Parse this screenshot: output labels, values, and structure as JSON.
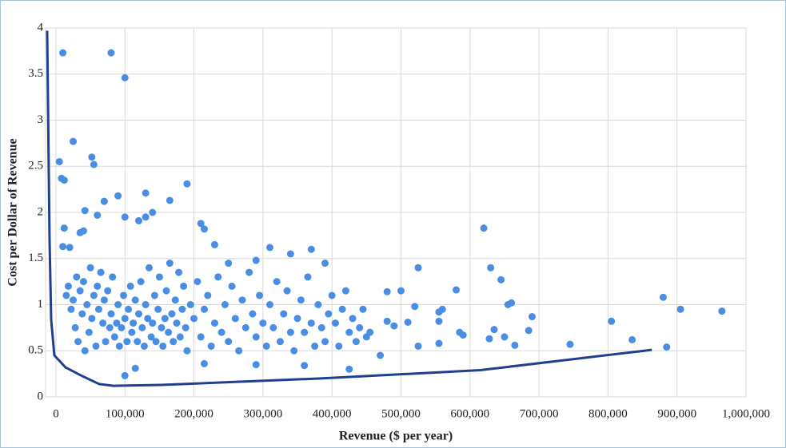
{
  "chart_data": {
    "type": "scatter",
    "xlabel": "Revenue ($ per year)",
    "ylabel": "Cost per Dollar of Revenue",
    "xlim": [
      -15000,
      1000000
    ],
    "xticks": [
      0,
      {
        "value": 100000,
        "label": "100,000"
      },
      {
        "value": 200000,
        "label": "200,000"
      },
      {
        "value": 300000,
        "label": "300,000"
      },
      {
        "value": 400000,
        "label": "400,000"
      },
      {
        "value": 500000,
        "label": "500,000"
      },
      {
        "value": 600000,
        "label": "600,000"
      },
      {
        "value": 700000,
        "label": "700,000"
      },
      {
        "value": 800000,
        "label": "800,000"
      },
      {
        "value": 900000,
        "label": "900,000"
      },
      {
        "value": 1000000,
        "label": "1,000,000"
      }
    ],
    "ylim": [
      0,
      4
    ],
    "yticks": [
      0,
      0.5,
      1,
      1.5,
      2,
      2.5,
      3,
      3.5,
      4
    ],
    "grid": true,
    "series": [
      {
        "mode": "markers",
        "color": "#4a8ee3",
        "x": [
          10000,
          80000,
          100000,
          25000,
          5000,
          8000,
          12000,
          52000,
          55000,
          130000,
          90000,
          70000,
          165000,
          190000,
          12000,
          42000,
          60000,
          100000,
          130000,
          140000,
          120000,
          210000,
          215000,
          230000,
          620000,
          630000,
          645000,
          525000,
          580000,
          500000,
          480000,
          520000,
          560000,
          555000,
          655000,
          660000,
          690000,
          880000,
          905000,
          965000,
          805000,
          835000,
          885000,
          745000,
          685000,
          650000,
          665000,
          635000,
          628000,
          590000,
          585000,
          555000,
          555000,
          525000,
          510000,
          490000,
          480000,
          470000,
          425000,
          360000,
          290000,
          100000,
          115000,
          215000,
          370000,
          310000,
          340000,
          390000,
          290000,
          250000,
          40000,
          20000,
          35000,
          10000,
          15000,
          18000,
          22000,
          25000,
          28000,
          30000,
          32000,
          35000,
          38000,
          40000,
          42000,
          45000,
          48000,
          50000,
          52000,
          55000,
          58000,
          60000,
          62000,
          65000,
          68000,
          70000,
          72000,
          75000,
          78000,
          80000,
          82000,
          85000,
          88000,
          90000,
          92000,
          95000,
          98000,
          100000,
          103000,
          105000,
          108000,
          110000,
          112000,
          115000,
          118000,
          120000,
          123000,
          125000,
          128000,
          130000,
          133000,
          135000,
          138000,
          140000,
          143000,
          145000,
          148000,
          150000,
          153000,
          155000,
          158000,
          160000,
          163000,
          165000,
          168000,
          170000,
          173000,
          175000,
          178000,
          180000,
          183000,
          185000,
          188000,
          190000,
          195000,
          200000,
          205000,
          210000,
          215000,
          220000,
          225000,
          230000,
          235000,
          240000,
          245000,
          250000,
          255000,
          260000,
          265000,
          270000,
          275000,
          280000,
          285000,
          290000,
          295000,
          300000,
          305000,
          310000,
          315000,
          320000,
          325000,
          330000,
          335000,
          340000,
          345000,
          350000,
          355000,
          360000,
          365000,
          370000,
          375000,
          380000,
          385000,
          390000,
          395000,
          400000,
          405000,
          410000,
          415000,
          420000,
          425000,
          430000,
          435000,
          440000,
          445000,
          450000,
          455000
        ],
        "values": [
          3.73,
          3.73,
          3.46,
          2.77,
          2.55,
          2.37,
          2.35,
          2.6,
          2.52,
          2.21,
          2.18,
          2.12,
          2.13,
          2.31,
          1.83,
          2.02,
          1.97,
          1.95,
          1.95,
          2.0,
          1.91,
          1.88,
          1.82,
          1.65,
          1.83,
          1.4,
          1.27,
          1.4,
          1.16,
          1.15,
          1.14,
          0.98,
          0.95,
          0.92,
          1.0,
          1.02,
          0.87,
          1.08,
          0.95,
          0.93,
          0.82,
          0.62,
          0.54,
          0.57,
          0.72,
          0.65,
          0.56,
          0.73,
          0.63,
          0.67,
          0.7,
          0.82,
          0.58,
          0.55,
          0.81,
          0.77,
          0.82,
          0.45,
          0.3,
          0.34,
          0.35,
          0.23,
          0.31,
          0.36,
          1.6,
          1.62,
          1.55,
          1.45,
          1.48,
          1.45,
          1.8,
          1.62,
          1.78,
          1.63,
          1.1,
          1.2,
          0.95,
          1.05,
          0.75,
          1.3,
          0.6,
          1.15,
          0.9,
          1.25,
          0.5,
          1.0,
          0.7,
          1.4,
          0.85,
          1.1,
          0.55,
          1.2,
          0.95,
          1.35,
          0.8,
          1.05,
          0.6,
          1.15,
          0.75,
          0.9,
          1.3,
          0.65,
          0.8,
          1.0,
          0.55,
          0.75,
          1.1,
          0.85,
          0.6,
          0.95,
          1.2,
          0.7,
          0.8,
          1.05,
          0.6,
          0.9,
          1.25,
          0.75,
          0.55,
          1.0,
          0.85,
          1.4,
          0.65,
          0.8,
          1.1,
          0.6,
          0.95,
          1.3,
          0.75,
          0.55,
          0.85,
          1.15,
          0.7,
          1.45,
          0.9,
          0.6,
          1.05,
          0.8,
          1.35,
          0.65,
          0.95,
          1.2,
          0.75,
          0.5,
          1.0,
          0.85,
          1.25,
          0.65,
          0.95,
          1.1,
          0.55,
          0.8,
          1.3,
          0.7,
          1.0,
          0.6,
          1.2,
          0.85,
          0.5,
          1.05,
          0.75,
          1.35,
          0.9,
          0.65,
          1.1,
          0.8,
          0.55,
          1.0,
          0.75,
          1.25,
          0.6,
          0.9,
          1.15,
          0.7,
          0.5,
          0.85,
          1.05,
          0.7,
          1.3,
          0.8,
          0.55,
          1.0,
          0.75,
          0.6,
          0.9,
          1.1,
          0.8,
          0.55,
          0.95,
          1.15,
          0.7,
          0.85,
          0.6,
          0.75,
          0.95,
          0.65,
          0.7
        ]
      },
      {
        "mode": "line",
        "color": "#1f3f8f",
        "x": [
          -12700,
          -9250,
          -6900,
          -2300,
          13900,
          37000,
          62400,
          83200,
          152600,
          383800,
          615000,
          863500
        ],
        "values": [
          3.97,
          1.71,
          0.84,
          0.45,
          0.32,
          0.23,
          0.14,
          0.12,
          0.13,
          0.2,
          0.29,
          0.51
        ]
      }
    ]
  }
}
